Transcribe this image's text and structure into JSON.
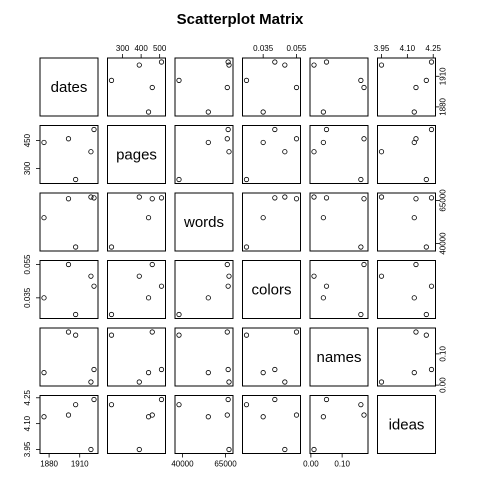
{
  "chart_data": {
    "type": "scatter",
    "title": "Scatterplot Matrix",
    "variables": [
      "dates",
      "pages",
      "words",
      "colors",
      "names",
      "ideas"
    ],
    "data": {
      "dates": [
        1875,
        1899,
        1906,
        1921,
        1924
      ],
      "pages": [
        440,
        460,
        240,
        390,
        510
      ],
      "words": [
        55000,
        66000,
        38000,
        67000,
        66500
      ],
      "colors": [
        0.035,
        0.055,
        0.025,
        0.048,
        0.042
      ],
      "names": [
        0.04,
        0.17,
        0.16,
        0.01,
        0.05
      ],
      "ideas": [
        4.14,
        4.15,
        4.21,
        3.95,
        4.24
      ]
    },
    "ticks": {
      "dates": {
        "values": [
          1880,
          1910
        ],
        "labels": [
          "1880",
          "1910"
        ],
        "bottom_labels": [
          "1880",
          "1910"
        ],
        "right_labels": [
          "1910",
          "1880"
        ]
      },
      "pages": {
        "values": [
          300,
          450
        ],
        "labels": [
          "300",
          "450"
        ],
        "top_values": [
          300,
          400,
          500
        ],
        "top_labels": [
          "300",
          "400",
          "500"
        ]
      },
      "words": {
        "values": [
          40000,
          65000
        ],
        "labels": [
          "40000",
          "65000"
        ]
      },
      "colors": {
        "values": [
          0.035,
          0.055
        ],
        "labels": [
          "0.035",
          "0.055"
        ]
      },
      "names": {
        "values": [
          0.0,
          0.1
        ],
        "labels": [
          "0.00",
          "0.10"
        ]
      },
      "ideas": {
        "values": [
          3.95,
          4.1,
          4.25
        ],
        "labels": [
          "3.95",
          "4.10",
          "4.25"
        ]
      }
    },
    "ranges": {
      "dates": [
        1875,
        1924
      ],
      "pages": [
        240,
        510
      ],
      "words": [
        38000,
        67000
      ],
      "colors": [
        0.025,
        0.055
      ],
      "names": [
        0.01,
        0.17
      ],
      "ideas": [
        3.95,
        4.24
      ]
    }
  }
}
